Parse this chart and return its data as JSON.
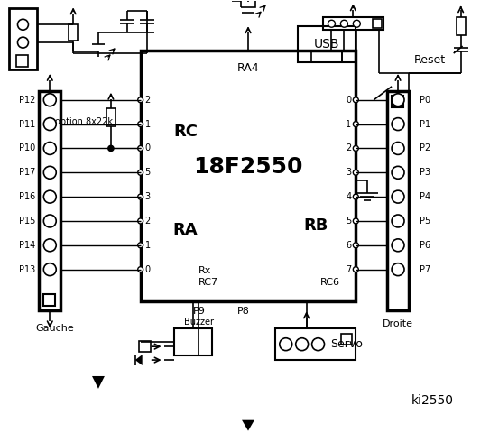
{
  "title": "ki2550",
  "bg_color": "#ffffff",
  "line_color": "#000000",
  "chip_label": "18F2550",
  "chip_sub": "RA4",
  "left_connector_label": "Gauche",
  "right_connector_label": "Droite",
  "left_pins": [
    "P12",
    "P11",
    "P10",
    "P17",
    "P16",
    "P15",
    "P14",
    "P13"
  ],
  "right_pins": [
    "P0",
    "P1",
    "P2",
    "P3",
    "P4",
    "P5",
    "P6",
    "P7"
  ],
  "rc_pins": [
    "2",
    "1",
    "0",
    "5",
    "3",
    "2",
    "1",
    "0"
  ],
  "rb_pins": [
    "0",
    "1",
    "2",
    "3",
    "4",
    "5",
    "6",
    "7"
  ],
  "rc_label": "RC",
  "ra_label": "RA",
  "rb_label": "RB",
  "rx_label": "Rx",
  "rc7_label": "RC7",
  "rc6_label": "RC6",
  "option_label": "option 8x22k",
  "usb_label": "USB",
  "reset_label": "Reset",
  "buzzer_label": "Buzzer",
  "servo_label": "Servo",
  "p9_label": "P9",
  "p8_label": "P8"
}
